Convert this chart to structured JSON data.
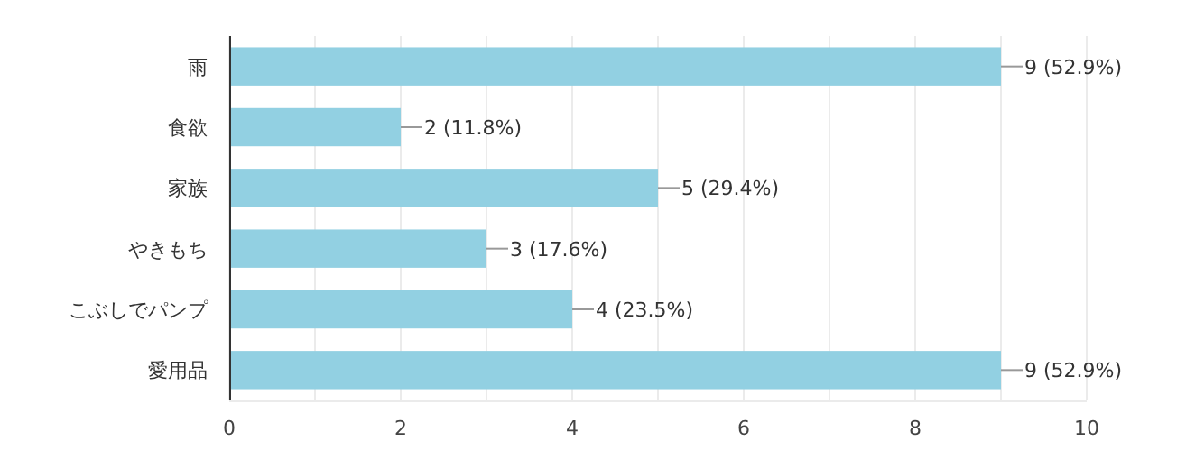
{
  "chart_data": {
    "type": "bar",
    "orientation": "horizontal",
    "categories": [
      "雨",
      "食欲",
      "家族",
      "やきもち",
      "こぶしでパンプ",
      "愛用品"
    ],
    "values": [
      9,
      2,
      5,
      3,
      4,
      9
    ],
    "value_labels": [
      "9 (52.9%)",
      "2 (11.8%)",
      "5 (29.4%)",
      "3 (17.6%)",
      "4 (23.5%)",
      "9 (52.9%)"
    ],
    "color": "#92d0e2",
    "xlim": [
      0,
      10
    ],
    "xticks": [
      0,
      {
        "value": 1,
        "label": null
      },
      2,
      {
        "value": 3,
        "label": null
      },
      4,
      {
        "value": 5,
        "label": null
      },
      6,
      {
        "value": 7,
        "label": null
      },
      8,
      {
        "value": 9,
        "label": null
      },
      10
    ],
    "grid": true
  }
}
